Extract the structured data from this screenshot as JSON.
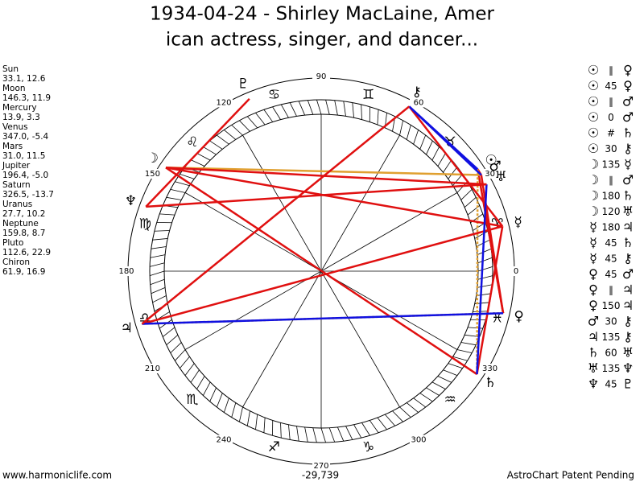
{
  "header": {
    "title_line1": "1934-04-24 - Shirley MacLaine, Amer",
    "title_line2": "ican actress, singer, and dancer..."
  },
  "planets": [
    {
      "name": "Sun",
      "glyph": "☉",
      "position": "33.1, 12.6"
    },
    {
      "name": "Moon",
      "glyph": "☽",
      "position": "146.3, 11.9"
    },
    {
      "name": "Mercury",
      "glyph": "☿",
      "position": "13.9, 3.3"
    },
    {
      "name": "Venus",
      "glyph": "♀",
      "position": "347.0, -5.4"
    },
    {
      "name": "Mars",
      "glyph": "♂",
      "position": "31.0, 11.5"
    },
    {
      "name": "Jupiter",
      "glyph": "♃",
      "position": "196.4, -5.0"
    },
    {
      "name": "Saturn",
      "glyph": "♄",
      "position": "326.5, -13.7"
    },
    {
      "name": "Uranus",
      "glyph": "♅",
      "position": "27.7, 10.2"
    },
    {
      "name": "Neptune",
      "glyph": "♆",
      "position": "159.8, 8.7"
    },
    {
      "name": "Pluto",
      "glyph": "♇",
      "position": "112.6, 22.9"
    },
    {
      "name": "Chiron",
      "glyph": "⚷",
      "position": "61.9, 16.9"
    }
  ],
  "aspects": [
    {
      "p1": 0,
      "aspect": "∥",
      "p2": 3,
      "color": "#e0a030",
      "style": "dashed"
    },
    {
      "p1": 0,
      "aspect": "45",
      "p2": 3,
      "color": "#e01010",
      "style": "solid"
    },
    {
      "p1": 0,
      "aspect": "∥",
      "p2": 4,
      "color": "#e0a030",
      "style": "dashed"
    },
    {
      "p1": 0,
      "aspect": "0",
      "p2": 4,
      "color": "#e01010",
      "style": "solid"
    },
    {
      "p1": 0,
      "aspect": "#",
      "p2": 6,
      "color": "#e0a030",
      "style": "dashed"
    },
    {
      "p1": 0,
      "aspect": "30",
      "p2": 10,
      "color": "#1010e0",
      "style": "solid"
    },
    {
      "p1": 1,
      "aspect": "135",
      "p2": 2,
      "color": "#e01010",
      "style": "solid"
    },
    {
      "p1": 1,
      "aspect": "∥",
      "p2": 4,
      "color": "#e0a030",
      "style": "solid"
    },
    {
      "p1": 1,
      "aspect": "180",
      "p2": 6,
      "color": "#e01010",
      "style": "solid"
    },
    {
      "p1": 1,
      "aspect": "120",
      "p2": 7,
      "color": "#e01010",
      "style": "solid"
    },
    {
      "p1": 2,
      "aspect": "180",
      "p2": 5,
      "color": "#e01010",
      "style": "solid"
    },
    {
      "p1": 2,
      "aspect": "45",
      "p2": 6,
      "color": "#e01010",
      "style": "solid"
    },
    {
      "p1": 2,
      "aspect": "45",
      "p2": 10,
      "color": "#e01010",
      "style": "solid"
    },
    {
      "p1": 3,
      "aspect": "45",
      "p2": 4,
      "color": "#e01010",
      "style": "solid"
    },
    {
      "p1": 3,
      "aspect": "∥",
      "p2": 5,
      "color": "#e0a030",
      "style": "dashed"
    },
    {
      "p1": 3,
      "aspect": "150",
      "p2": 5,
      "color": "#1010e0",
      "style": "solid"
    },
    {
      "p1": 4,
      "aspect": "30",
      "p2": 10,
      "color": "#1010e0",
      "style": "solid"
    },
    {
      "p1": 5,
      "aspect": "135",
      "p2": 10,
      "color": "#e01010",
      "style": "solid"
    },
    {
      "p1": 6,
      "aspect": "60",
      "p2": 7,
      "color": "#1010e0",
      "style": "solid"
    },
    {
      "p1": 7,
      "aspect": "135",
      "p2": 8,
      "color": "#e01010",
      "style": "solid"
    },
    {
      "p1": 8,
      "aspect": "45",
      "p2": 9,
      "color": "#e01010",
      "style": "solid"
    }
  ],
  "degree_labels": [
    0,
    30,
    60,
    90,
    120,
    150,
    180,
    210,
    240,
    270,
    300,
    330
  ],
  "zodiac_signs": [
    "♈",
    "♉",
    "♊",
    "♋",
    "♌",
    "♍",
    "♎",
    "♏",
    "♐",
    "♑",
    "♒",
    "♓"
  ],
  "footer": {
    "website": "www.harmoniclife.com",
    "center_value": "-29,739",
    "note": "AstroChart Patent Pending"
  }
}
